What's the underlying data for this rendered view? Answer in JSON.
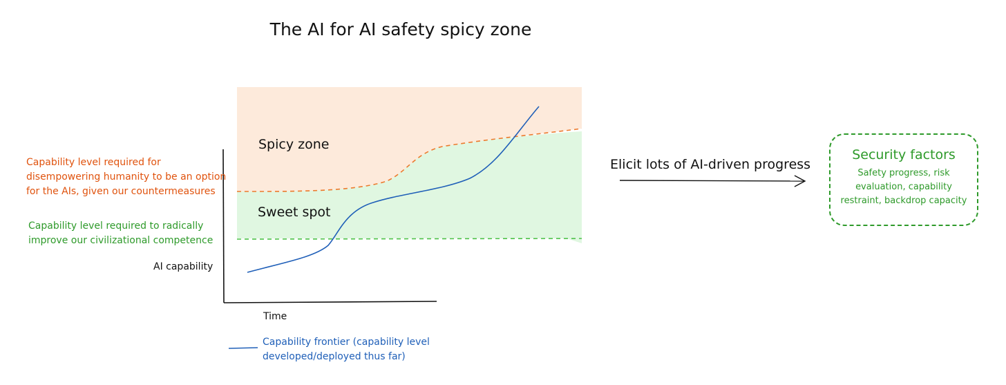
{
  "title": "The AI for AI safety spicy zone",
  "zones": {
    "spicy": "Spicy zone",
    "sweet": "Sweet spot"
  },
  "thresholds": {
    "disempower": {
      "lines": [
        "Capability level required for",
        "disempowering humanity to be an option",
        "for the AIs, given our countermeasures"
      ],
      "color": "#e0530e"
    },
    "competence": {
      "lines": [
        "Capability level required to radically",
        "improve our civilizational competence"
      ],
      "color": "#2e9a2a"
    }
  },
  "axes": {
    "y_label": "AI capability",
    "x_label": "Time"
  },
  "legend": {
    "lines": [
      "Capability frontier (capability level",
      "developed/deployed thus far)"
    ],
    "color": "#1f5fb8"
  },
  "arrow": {
    "label": "Elicit lots of AI-driven progress"
  },
  "security_box": {
    "title": "Security factors",
    "lines": [
      "Safety progress, risk",
      "evaluation, capability",
      "restraint, backdrop capacity"
    ],
    "color": "#2e9a2a"
  },
  "colors": {
    "spicy_fill": "#fdeadb",
    "sweet_fill": "#e0f7e1",
    "frontier": "#1f5fb8",
    "axis": "#111111"
  }
}
